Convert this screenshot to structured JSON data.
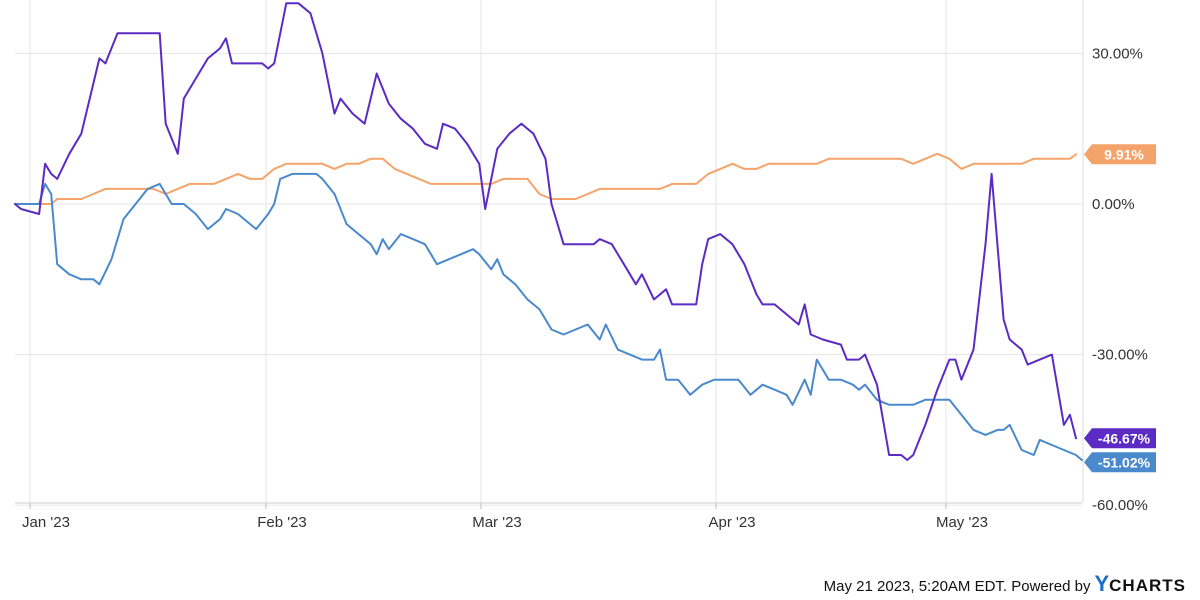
{
  "chart_data": {
    "type": "line",
    "x_ticks": [
      "Jan '23",
      "Feb '23",
      "Mar '23",
      "Apr '23",
      "May '23"
    ],
    "y_ticks": [
      "30.00%",
      "0.00%",
      "-30.00%",
      "-60.00%"
    ],
    "ylim": [
      -60,
      40
    ],
    "grid": true,
    "series": [
      {
        "color": "#5b2bc3",
        "end_label": "-46.67%",
        "values": [
          [
            0,
            0
          ],
          [
            1,
            -1
          ],
          [
            4,
            -2
          ],
          [
            5,
            8
          ],
          [
            6,
            6
          ],
          [
            7,
            5
          ],
          [
            9,
            10
          ],
          [
            11,
            14
          ],
          [
            14,
            29
          ],
          [
            15,
            28
          ],
          [
            17,
            34
          ],
          [
            18,
            34
          ],
          [
            21,
            34
          ],
          [
            24,
            34
          ],
          [
            25,
            16
          ],
          [
            27,
            10
          ],
          [
            28,
            21
          ],
          [
            30,
            25
          ],
          [
            32,
            29
          ],
          [
            34,
            31
          ],
          [
            35,
            33
          ],
          [
            36,
            28
          ],
          [
            38,
            28
          ],
          [
            41,
            28
          ],
          [
            42,
            27
          ],
          [
            43,
            28
          ],
          [
            45,
            40
          ],
          [
            47,
            40
          ],
          [
            49,
            38
          ],
          [
            51,
            30
          ],
          [
            53,
            18
          ],
          [
            54,
            21
          ],
          [
            56,
            18
          ],
          [
            58,
            16
          ],
          [
            60,
            26
          ],
          [
            62,
            20
          ],
          [
            64,
            17
          ],
          [
            66,
            15
          ],
          [
            68,
            12
          ],
          [
            70,
            11
          ],
          [
            71,
            16
          ],
          [
            73,
            15
          ],
          [
            75,
            12
          ],
          [
            77,
            8
          ],
          [
            78,
            -1
          ],
          [
            80,
            11
          ],
          [
            82,
            14
          ],
          [
            84,
            16
          ],
          [
            86,
            14
          ],
          [
            88,
            9
          ],
          [
            89,
            0
          ],
          [
            91,
            -8
          ],
          [
            93,
            -8
          ],
          [
            96,
            -8
          ],
          [
            97,
            -7
          ],
          [
            99,
            -8
          ],
          [
            101,
            -12
          ],
          [
            103,
            -16
          ],
          [
            104,
            -14
          ],
          [
            106,
            -19
          ],
          [
            108,
            -17
          ],
          [
            109,
            -20
          ],
          [
            113,
            -20
          ],
          [
            114,
            -12
          ],
          [
            115,
            -7
          ],
          [
            117,
            -6
          ],
          [
            119,
            -8
          ],
          [
            121,
            -12
          ],
          [
            123,
            -18
          ],
          [
            124,
            -20
          ],
          [
            126,
            -20
          ],
          [
            128,
            -22
          ],
          [
            130,
            -24
          ],
          [
            131,
            -20
          ],
          [
            132,
            -26
          ],
          [
            134,
            -27
          ],
          [
            137,
            -28
          ],
          [
            138,
            -31
          ],
          [
            140,
            -31
          ],
          [
            141,
            -30
          ],
          [
            142,
            -33
          ],
          [
            143,
            -36
          ],
          [
            145,
            -50
          ],
          [
            147,
            -50
          ],
          [
            148,
            -51
          ],
          [
            149,
            -50
          ],
          [
            151,
            -44
          ],
          [
            153,
            -37
          ],
          [
            155,
            -31
          ],
          [
            156,
            -31
          ],
          [
            157,
            -35
          ],
          [
            159,
            -29
          ],
          [
            161,
            -8
          ],
          [
            162,
            6
          ],
          [
            164,
            -23
          ],
          [
            165,
            -27
          ],
          [
            167,
            -29
          ],
          [
            168,
            -32
          ],
          [
            170,
            -31
          ],
          [
            172,
            -30
          ],
          [
            174,
            -44
          ],
          [
            175,
            -42
          ],
          [
            176,
            -46.67
          ]
        ]
      },
      {
        "color": "#4a89cc",
        "end_label": "-51.02%",
        "values": [
          [
            0,
            0
          ],
          [
            2,
            0
          ],
          [
            4,
            0
          ],
          [
            5,
            4
          ],
          [
            6,
            2
          ],
          [
            7,
            -12
          ],
          [
            9,
            -14
          ],
          [
            11,
            -15
          ],
          [
            13,
            -15
          ],
          [
            14,
            -16
          ],
          [
            16,
            -11
          ],
          [
            18,
            -3
          ],
          [
            20,
            0
          ],
          [
            22,
            3
          ],
          [
            24,
            4
          ],
          [
            26,
            0
          ],
          [
            28,
            0
          ],
          [
            30,
            -2
          ],
          [
            32,
            -5
          ],
          [
            34,
            -3
          ],
          [
            35,
            -1
          ],
          [
            37,
            -2
          ],
          [
            39,
            -4
          ],
          [
            40,
            -5
          ],
          [
            42,
            -2
          ],
          [
            43,
            0
          ],
          [
            44,
            5
          ],
          [
            46,
            6
          ],
          [
            48,
            6
          ],
          [
            50,
            6
          ],
          [
            51,
            5
          ],
          [
            53,
            2
          ],
          [
            55,
            -4
          ],
          [
            57,
            -6
          ],
          [
            59,
            -8
          ],
          [
            60,
            -10
          ],
          [
            61,
            -7
          ],
          [
            62,
            -9
          ],
          [
            64,
            -6
          ],
          [
            66,
            -7
          ],
          [
            68,
            -8
          ],
          [
            70,
            -12
          ],
          [
            72,
            -11
          ],
          [
            74,
            -10
          ],
          [
            76,
            -9
          ],
          [
            77,
            -10
          ],
          [
            79,
            -13
          ],
          [
            80,
            -11
          ],
          [
            81,
            -14
          ],
          [
            83,
            -16
          ],
          [
            85,
            -19
          ],
          [
            87,
            -21
          ],
          [
            89,
            -25
          ],
          [
            91,
            -26
          ],
          [
            93,
            -25
          ],
          [
            95,
            -24
          ],
          [
            97,
            -27
          ],
          [
            98,
            -24
          ],
          [
            100,
            -29
          ],
          [
            102,
            -30
          ],
          [
            104,
            -31
          ],
          [
            106,
            -31
          ],
          [
            107,
            -29
          ],
          [
            108,
            -35
          ],
          [
            110,
            -35
          ],
          [
            112,
            -38
          ],
          [
            114,
            -36
          ],
          [
            116,
            -35
          ],
          [
            118,
            -35
          ],
          [
            120,
            -35
          ],
          [
            122,
            -38
          ],
          [
            124,
            -36
          ],
          [
            126,
            -37
          ],
          [
            128,
            -38
          ],
          [
            129,
            -40
          ],
          [
            131,
            -35
          ],
          [
            132,
            -38
          ],
          [
            133,
            -31
          ],
          [
            135,
            -35
          ],
          [
            137,
            -35
          ],
          [
            139,
            -36
          ],
          [
            140,
            -37
          ],
          [
            141,
            -36
          ],
          [
            143,
            -39
          ],
          [
            145,
            -40
          ],
          [
            147,
            -40
          ],
          [
            149,
            -40
          ],
          [
            151,
            -39
          ],
          [
            153,
            -39
          ],
          [
            155,
            -39
          ],
          [
            157,
            -42
          ],
          [
            159,
            -45
          ],
          [
            161,
            -46
          ],
          [
            163,
            -45
          ],
          [
            164,
            -45
          ],
          [
            165,
            -44
          ],
          [
            167,
            -49
          ],
          [
            169,
            -50
          ],
          [
            170,
            -47
          ],
          [
            172,
            -48
          ],
          [
            174,
            -49
          ],
          [
            176,
            -50
          ],
          [
            177,
            -51.02
          ]
        ]
      },
      {
        "color": "#f4a46a",
        "end_label": "9.91%",
        "values": [
          [
            0,
            0
          ],
          [
            2,
            0
          ],
          [
            4,
            0
          ],
          [
            6,
            0
          ],
          [
            7,
            1
          ],
          [
            9,
            1
          ],
          [
            11,
            1
          ],
          [
            13,
            2
          ],
          [
            15,
            3
          ],
          [
            17,
            3
          ],
          [
            19,
            3
          ],
          [
            21,
            3
          ],
          [
            23,
            3
          ],
          [
            25,
            2
          ],
          [
            27,
            3
          ],
          [
            29,
            4
          ],
          [
            31,
            4
          ],
          [
            33,
            4
          ],
          [
            35,
            5
          ],
          [
            37,
            6
          ],
          [
            39,
            5
          ],
          [
            41,
            5
          ],
          [
            43,
            7
          ],
          [
            45,
            8
          ],
          [
            47,
            8
          ],
          [
            49,
            8
          ],
          [
            51,
            8
          ],
          [
            53,
            7
          ],
          [
            55,
            8
          ],
          [
            57,
            8
          ],
          [
            59,
            9
          ],
          [
            61,
            9
          ],
          [
            63,
            7
          ],
          [
            65,
            6
          ],
          [
            67,
            5
          ],
          [
            69,
            4
          ],
          [
            71,
            4
          ],
          [
            73,
            4
          ],
          [
            75,
            4
          ],
          [
            77,
            4
          ],
          [
            79,
            4
          ],
          [
            81,
            5
          ],
          [
            83,
            5
          ],
          [
            85,
            5
          ],
          [
            87,
            2
          ],
          [
            89,
            1
          ],
          [
            91,
            1
          ],
          [
            93,
            1
          ],
          [
            95,
            2
          ],
          [
            97,
            3
          ],
          [
            99,
            3
          ],
          [
            101,
            3
          ],
          [
            103,
            3
          ],
          [
            105,
            3
          ],
          [
            107,
            3
          ],
          [
            109,
            4
          ],
          [
            111,
            4
          ],
          [
            113,
            4
          ],
          [
            115,
            6
          ],
          [
            117,
            7
          ],
          [
            119,
            8
          ],
          [
            121,
            7
          ],
          [
            123,
            7
          ],
          [
            125,
            8
          ],
          [
            127,
            8
          ],
          [
            129,
            8
          ],
          [
            131,
            8
          ],
          [
            133,
            8
          ],
          [
            135,
            9
          ],
          [
            137,
            9
          ],
          [
            139,
            9
          ],
          [
            141,
            9
          ],
          [
            143,
            9
          ],
          [
            145,
            9
          ],
          [
            147,
            9
          ],
          [
            149,
            8
          ],
          [
            151,
            9
          ],
          [
            153,
            10
          ],
          [
            155,
            9
          ],
          [
            157,
            7
          ],
          [
            159,
            8
          ],
          [
            161,
            8
          ],
          [
            163,
            8
          ],
          [
            165,
            8
          ],
          [
            167,
            8
          ],
          [
            169,
            9
          ],
          [
            171,
            9
          ],
          [
            173,
            9
          ],
          [
            175,
            9
          ],
          [
            176,
            9.91
          ]
        ]
      }
    ]
  },
  "footer": {
    "text": "May 21 2023, 5:20AM EDT. Powered by",
    "brand_y": "Y",
    "brand_rest": "CHARTS"
  }
}
